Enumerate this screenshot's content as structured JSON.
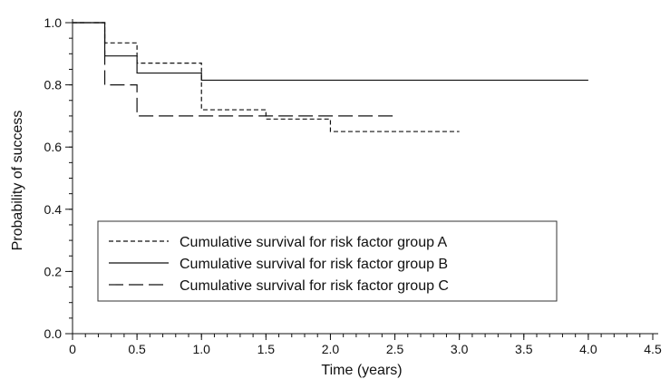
{
  "chart_data": {
    "type": "line",
    "step": true,
    "title": "",
    "xlabel": "Time (years)",
    "ylabel": "Probability of success",
    "xlim": [
      0,
      4.5
    ],
    "ylim": [
      0,
      1.0
    ],
    "xticks": [
      "0",
      "0.5",
      "1.0",
      "1.5",
      "2.0",
      "2.5",
      "3.0",
      "3.5",
      "4.0",
      "4.5"
    ],
    "xtick_values": [
      0,
      0.5,
      1.0,
      1.5,
      2.0,
      2.5,
      3.0,
      3.5,
      4.0,
      4.5
    ],
    "yticks": [
      "0.0",
      "0.2",
      "0.4",
      "0.6",
      "0.8",
      "1.0"
    ],
    "ytick_values": [
      0,
      0.2,
      0.4,
      0.6,
      0.8,
      1.0
    ],
    "grid": false,
    "legend_position": "bottom-left",
    "series": [
      {
        "name": "Cumulative survival for risk factor group A",
        "line_style": "dashed",
        "x": [
          0,
          0.25,
          0.5,
          1.0,
          1.5,
          2.0,
          3.0
        ],
        "y": [
          1.0,
          0.935,
          0.87,
          0.72,
          0.69,
          0.65,
          0.65
        ]
      },
      {
        "name": "Cumulative survival for risk factor group B",
        "line_style": "solid",
        "x": [
          0,
          0.25,
          0.5,
          1.0,
          4.0
        ],
        "y": [
          1.0,
          0.893,
          0.838,
          0.815,
          0.815
        ]
      },
      {
        "name": "Cumulative survival for risk factor group C",
        "line_style": "long-dash",
        "x": [
          0,
          0.25,
          0.5,
          2.5
        ],
        "y": [
          1.0,
          0.8,
          0.7,
          0.7
        ]
      }
    ]
  }
}
